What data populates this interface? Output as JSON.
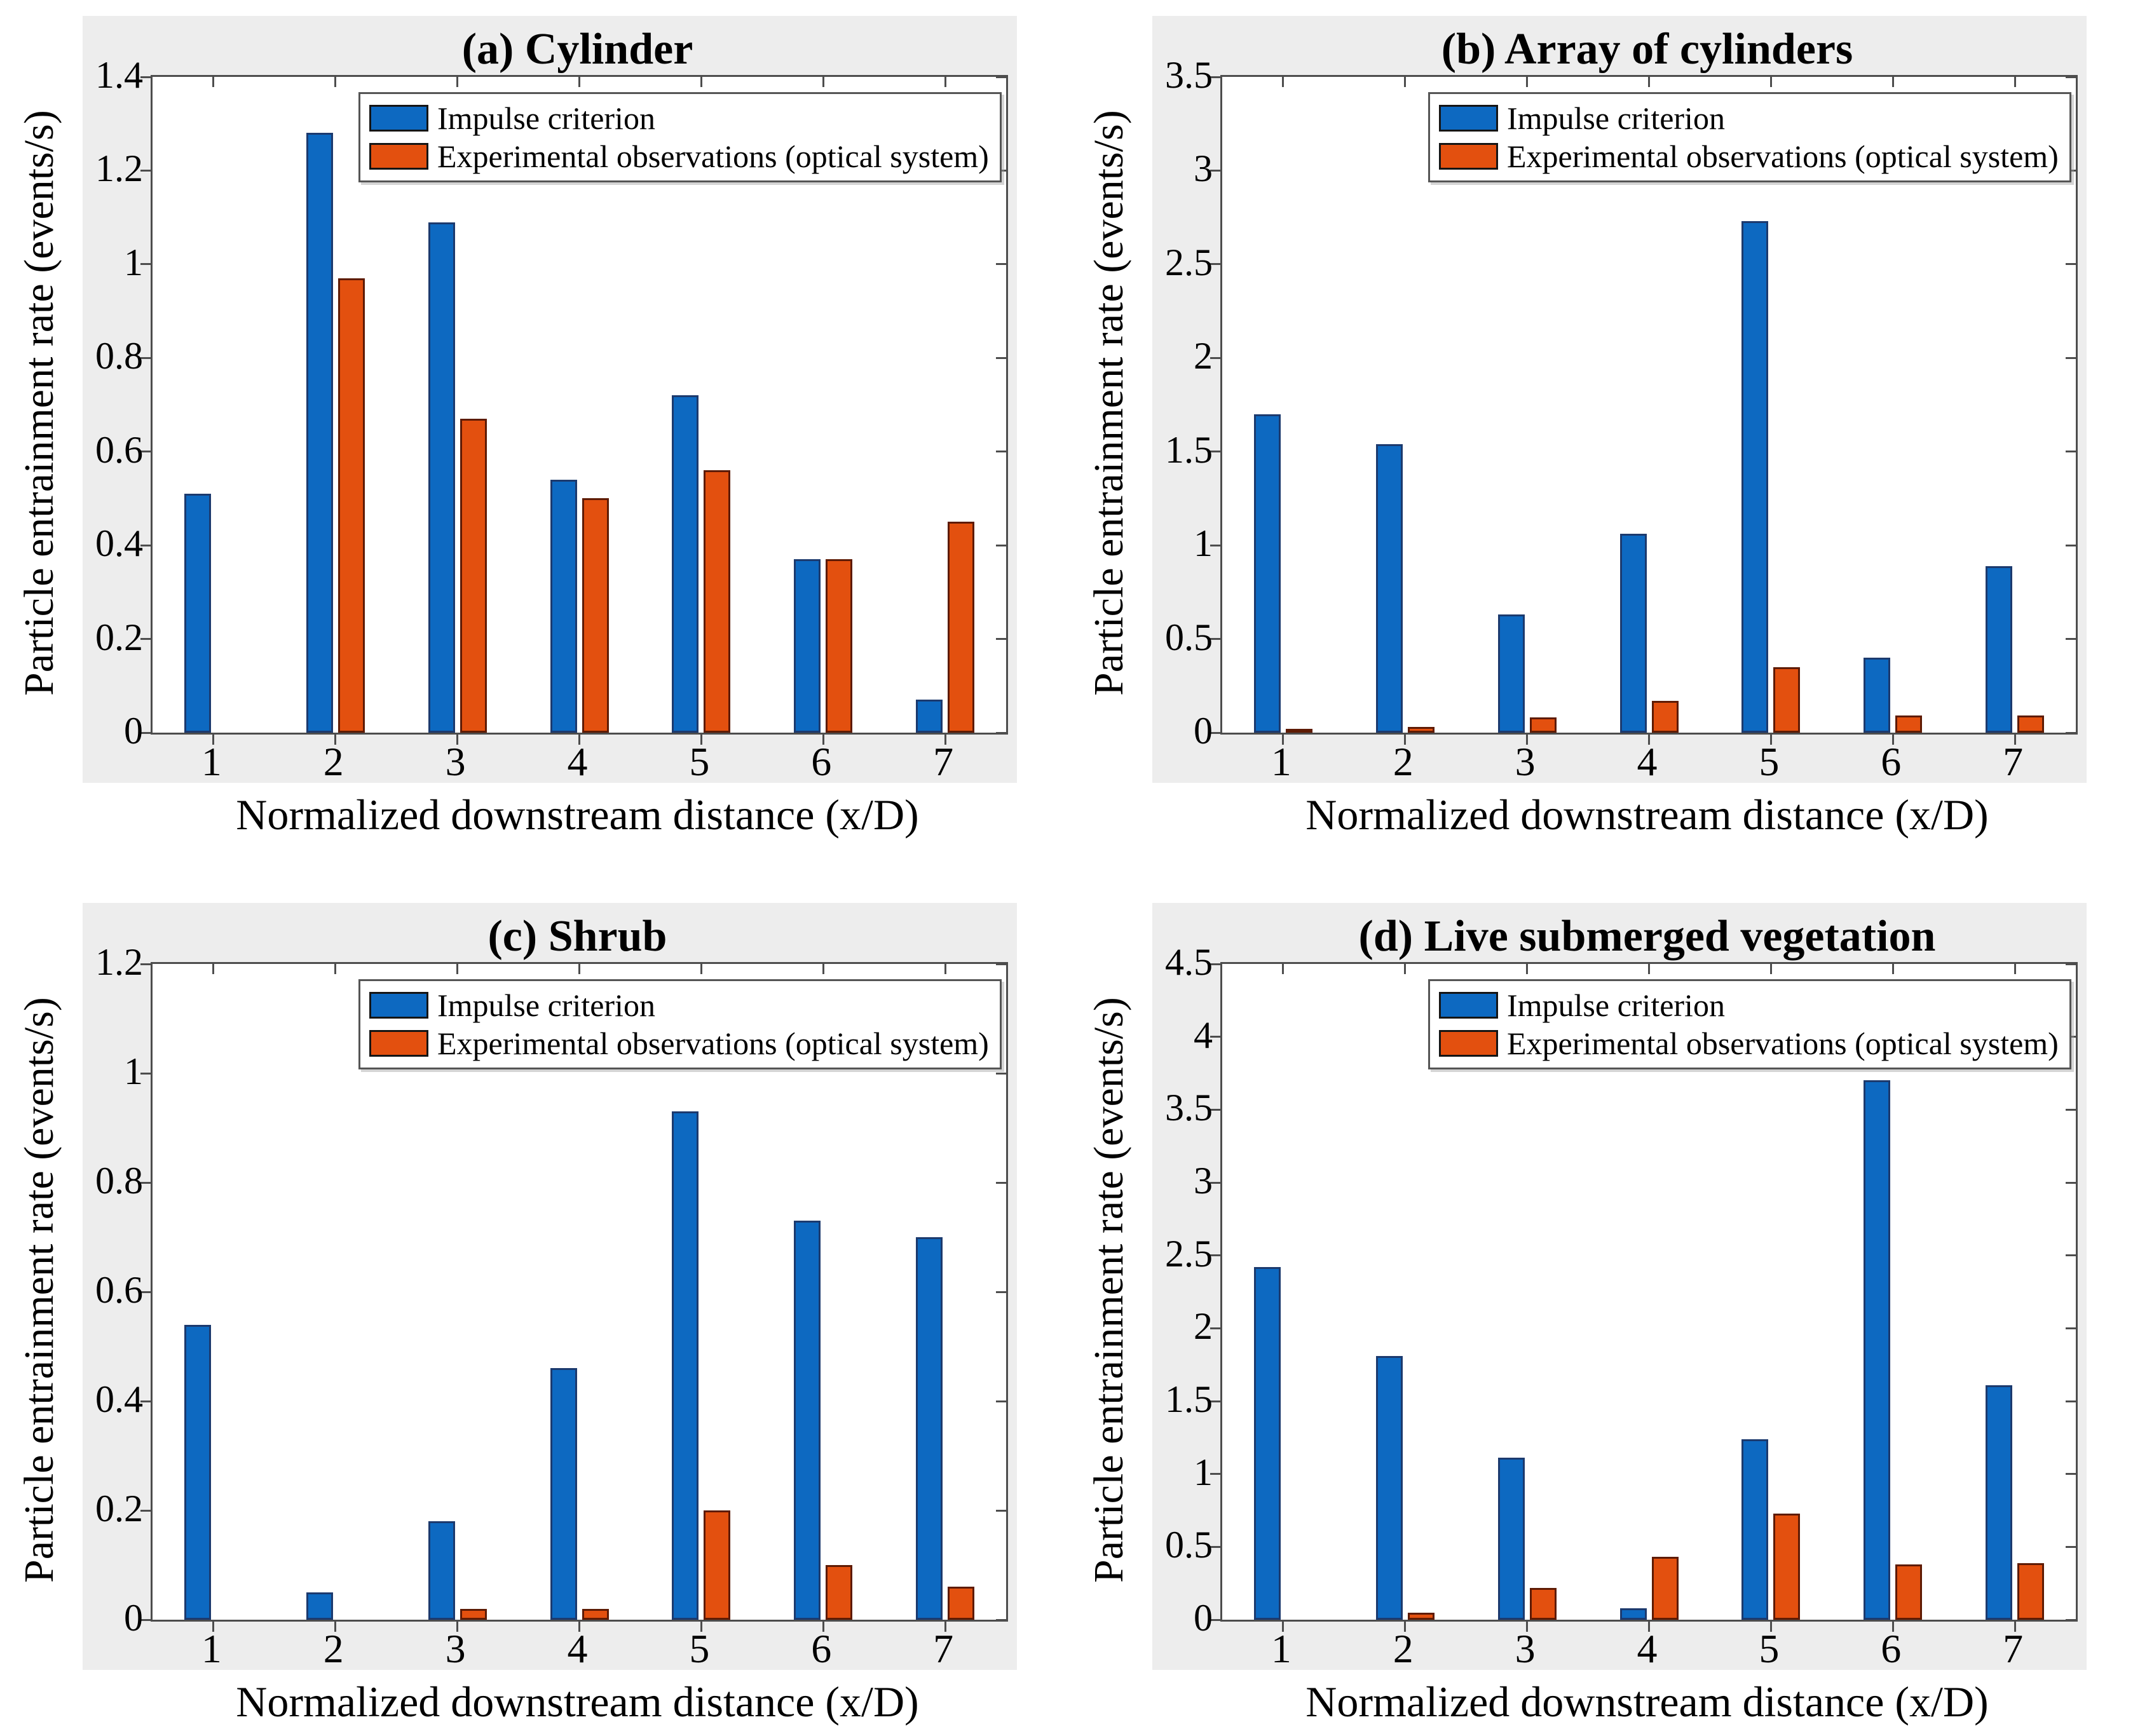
{
  "figure": {
    "ylabel": "Particle entrainment rate (events/s)",
    "xlabel": "Normalized downstream distance (x/D)",
    "legend": [
      "Impulse criterion",
      "Experimental observations (optical system)"
    ],
    "colors": {
      "impulse_fill": "#0d69c1",
      "impulse_edge": "#1c3a6e",
      "experimental_fill": "#e3500f",
      "experimental_edge": "#5e1b04",
      "panel_background": "#ededed",
      "plot_background": "#ffffff",
      "axis": "#4d4d4d",
      "text": "#000000"
    }
  },
  "chart_data": [
    {
      "id": "a",
      "type": "bar",
      "title": "(a) Cylinder",
      "xlabel": "Normalized downstream distance (x/D)",
      "ylabel": "Particle entrainment rate (events/s)",
      "categories": [
        "1",
        "2",
        "3",
        "4",
        "5",
        "6",
        "7"
      ],
      "series": [
        {
          "name": "Impulse criterion",
          "values": [
            0.51,
            1.28,
            1.09,
            0.54,
            0.72,
            0.37,
            0.07
          ]
        },
        {
          "name": "Experimental observations (optical system)",
          "values": [
            0,
            0.97,
            0.67,
            0.5,
            0.56,
            0.37,
            0.45
          ]
        }
      ],
      "ylim": [
        0,
        1.4
      ],
      "yticks": [
        0,
        0.2,
        0.4,
        0.6,
        0.8,
        1,
        1.2,
        1.4
      ],
      "ytick_labels": [
        "0",
        "0.2",
        "0.4",
        "0.6",
        "0.8",
        "1",
        "1.2",
        "1.4"
      ],
      "grid": false,
      "legend_position": "top-right"
    },
    {
      "id": "b",
      "type": "bar",
      "title": "(b) Array of cylinders",
      "xlabel": "Normalized downstream distance (x/D)",
      "ylabel": "Particle entrainment rate (events/s)",
      "categories": [
        "1",
        "2",
        "3",
        "4",
        "5",
        "6",
        "7"
      ],
      "series": [
        {
          "name": "Impulse criterion",
          "values": [
            1.7,
            1.54,
            0.63,
            1.06,
            2.73,
            0.4,
            0.89
          ]
        },
        {
          "name": "Experimental observations (optical system)",
          "values": [
            0.02,
            0.03,
            0.08,
            0.17,
            0.35,
            0.09,
            0.09
          ]
        }
      ],
      "ylim": [
        0,
        3.5
      ],
      "yticks": [
        0,
        0.5,
        1,
        1.5,
        2,
        2.5,
        3,
        3.5
      ],
      "ytick_labels": [
        "0",
        "0.5",
        "1",
        "1.5",
        "2",
        "2.5",
        "3",
        "3.5"
      ],
      "grid": false,
      "legend_position": "top-right"
    },
    {
      "id": "c",
      "type": "bar",
      "title": "(c) Shrub",
      "xlabel": "Normalized downstream distance (x/D)",
      "ylabel": "Particle entrainment rate (events/s)",
      "categories": [
        "1",
        "2",
        "3",
        "4",
        "5",
        "6",
        "7"
      ],
      "series": [
        {
          "name": "Impulse criterion",
          "values": [
            0.54,
            0.05,
            0.18,
            0.46,
            0.93,
            0.73,
            0.7
          ]
        },
        {
          "name": "Experimental observations (optical system)",
          "values": [
            0,
            0,
            0.02,
            0.02,
            0.2,
            0.1,
            0.06
          ]
        }
      ],
      "ylim": [
        0,
        1.2
      ],
      "yticks": [
        0,
        0.2,
        0.4,
        0.6,
        0.8,
        1,
        1.2
      ],
      "ytick_labels": [
        "0",
        "0.2",
        "0.4",
        "0.6",
        "0.8",
        "1",
        "1.2"
      ],
      "grid": false,
      "legend_position": "top-right"
    },
    {
      "id": "d",
      "type": "bar",
      "title": "(d) Live submerged vegetation",
      "xlabel": "Normalized downstream distance (x/D)",
      "ylabel": "Particle entrainment rate (events/s)",
      "categories": [
        "1",
        "2",
        "3",
        "4",
        "5",
        "6",
        "7"
      ],
      "series": [
        {
          "name": "Impulse criterion",
          "values": [
            2.42,
            1.81,
            1.11,
            0.08,
            1.24,
            3.7,
            1.61
          ]
        },
        {
          "name": "Experimental observations (optical system)",
          "values": [
            0,
            0.05,
            0.22,
            0.43,
            0.73,
            0.38,
            0.39
          ]
        }
      ],
      "ylim": [
        0,
        4.5
      ],
      "yticks": [
        0,
        0.5,
        1,
        1.5,
        2,
        2.5,
        3,
        3.5,
        4,
        4.5
      ],
      "ytick_labels": [
        "0",
        "0.5",
        "1",
        "1.5",
        "2",
        "2.5",
        "3",
        "3.5",
        "4",
        "4.5"
      ],
      "grid": false,
      "legend_position": "top-right"
    }
  ]
}
